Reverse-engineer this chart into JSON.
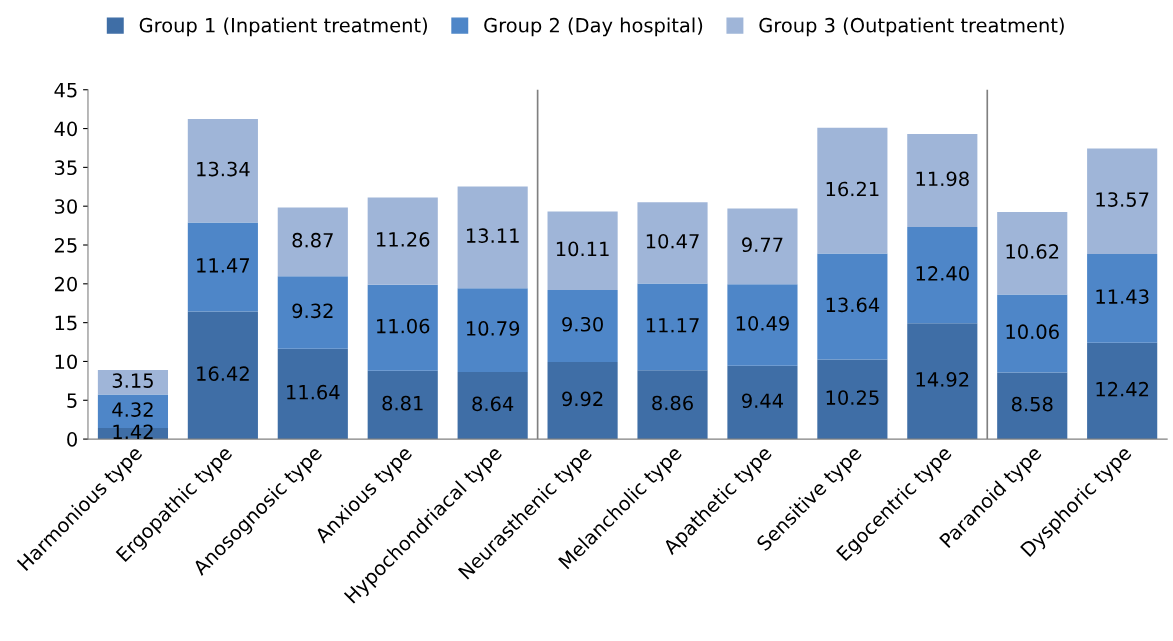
{
  "chart_data": {
    "type": "bar",
    "stacked": true,
    "categories": [
      "Harmonious type",
      "Ergopathic type",
      "Anosognosic type",
      "Anxious type",
      "Hypochondriacal type",
      "Neurasthenic type",
      "Melancholic type",
      "Apathetic type",
      "Sensitive type",
      "Egocentric type",
      "Paranoid type",
      "Dysphoric type"
    ],
    "series": [
      {
        "name": "Group 1 (Inpatient treatment)",
        "color": "#3f6ea6",
        "values": [
          1.42,
          16.42,
          11.64,
          8.81,
          8.64,
          9.92,
          8.86,
          9.44,
          10.25,
          14.92,
          8.58,
          12.42
        ],
        "value_labels": [
          "1.42",
          "16.42",
          "11.64",
          "8.81",
          "8.64",
          "9.92",
          "8.86",
          "9.44",
          "10.25",
          "14.92",
          "8.58",
          "12.42"
        ]
      },
      {
        "name": "Group 2 (Day hospital)",
        "color": "#4e86c8",
        "values": [
          4.32,
          11.47,
          9.32,
          11.06,
          10.79,
          9.3,
          11.17,
          10.49,
          13.64,
          12.4,
          10.06,
          11.43
        ],
        "value_labels": [
          "4.32",
          "11.47",
          "9.32",
          "11.06",
          "10.79",
          "9.30",
          "11.17",
          "10.49",
          "13.64",
          "12.40",
          "10.06",
          "11.43"
        ]
      },
      {
        "name": "Group 3 (Outpatient treatment)",
        "color": "#9fb5d8",
        "values": [
          3.15,
          13.34,
          8.87,
          11.26,
          13.11,
          10.11,
          10.47,
          9.77,
          16.21,
          11.98,
          10.62,
          13.57
        ],
        "value_labels": [
          "3.15",
          "13.34",
          "8.87",
          "11.26",
          "13.11",
          "10.11",
          "10.47",
          "9.77",
          "16.21",
          "11.98",
          "10.62",
          "13.57"
        ]
      }
    ],
    "ylim": [
      0,
      45
    ],
    "yticks": [
      0,
      5,
      10,
      15,
      20,
      25,
      30,
      35,
      40,
      45
    ],
    "grid": false,
    "legend": "top"
  }
}
